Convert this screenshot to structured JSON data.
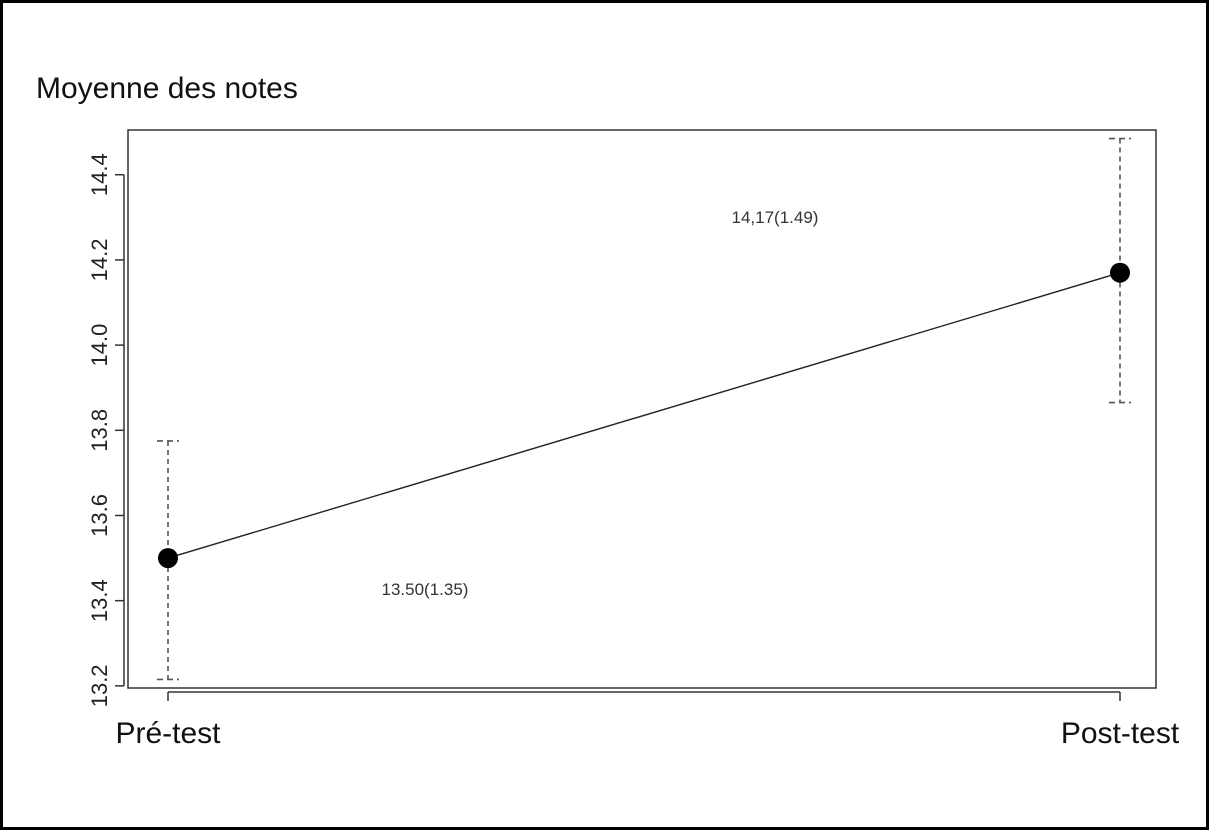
{
  "chart_data": {
    "type": "line",
    "title": "",
    "ylabel": "Moyenne des notes",
    "xlabel": "",
    "categories": [
      "Pré-test",
      "Post-test"
    ],
    "series": [
      {
        "values": [
          13.5,
          14.17
        ],
        "error_low": [
          13.215,
          13.865
        ],
        "error_high": [
          13.775,
          14.485
        ],
        "labels": [
          "13.50(1.35)",
          "14,17(1.49)"
        ]
      }
    ],
    "yticks": [
      "13.2",
      "13.4",
      "13.6",
      "13.8",
      "14.0",
      "14.2",
      "14.4"
    ],
    "ylim": [
      13.195,
      14.505
    ],
    "grid": false,
    "legend": "none"
  }
}
